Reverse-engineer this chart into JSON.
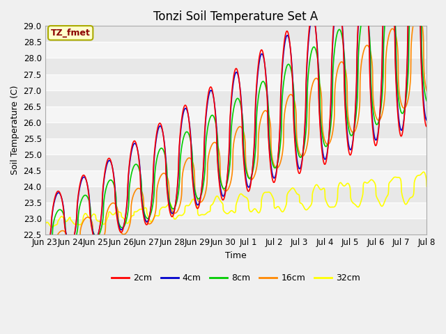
{
  "title": "Tonzi Soil Temperature Set A",
  "xlabel": "Time",
  "ylabel": "Soil Temperature (C)",
  "ylim": [
    22.5,
    29.0
  ],
  "xlim": [
    0,
    15
  ],
  "annotation": "TZ_fmet",
  "colors": {
    "2cm": "#ff0000",
    "4cm": "#0000cc",
    "8cm": "#00cc00",
    "16cm": "#ff8800",
    "32cm": "#ffff00"
  },
  "legend_labels": [
    "2cm",
    "4cm",
    "8cm",
    "16cm",
    "32cm"
  ],
  "xtick_labels": [
    "Jun 23",
    "Jun 24",
    "Jun 25",
    "Jun 26",
    "Jun 27",
    "Jun 28",
    "Jun 29",
    "Jun 30",
    "Jul 1",
    "Jul 2",
    "Jul 3",
    "Jul 4",
    "Jul 5",
    "Jul 6",
    "Jul 7",
    "Jul 8"
  ],
  "n_points": 1440,
  "title_fontsize": 12,
  "axis_label_fontsize": 9,
  "tick_fontsize": 8.5,
  "band_colors": [
    "#e8e8e8",
    "#f5f5f5"
  ],
  "fig_facecolor": "#f0f0f0"
}
